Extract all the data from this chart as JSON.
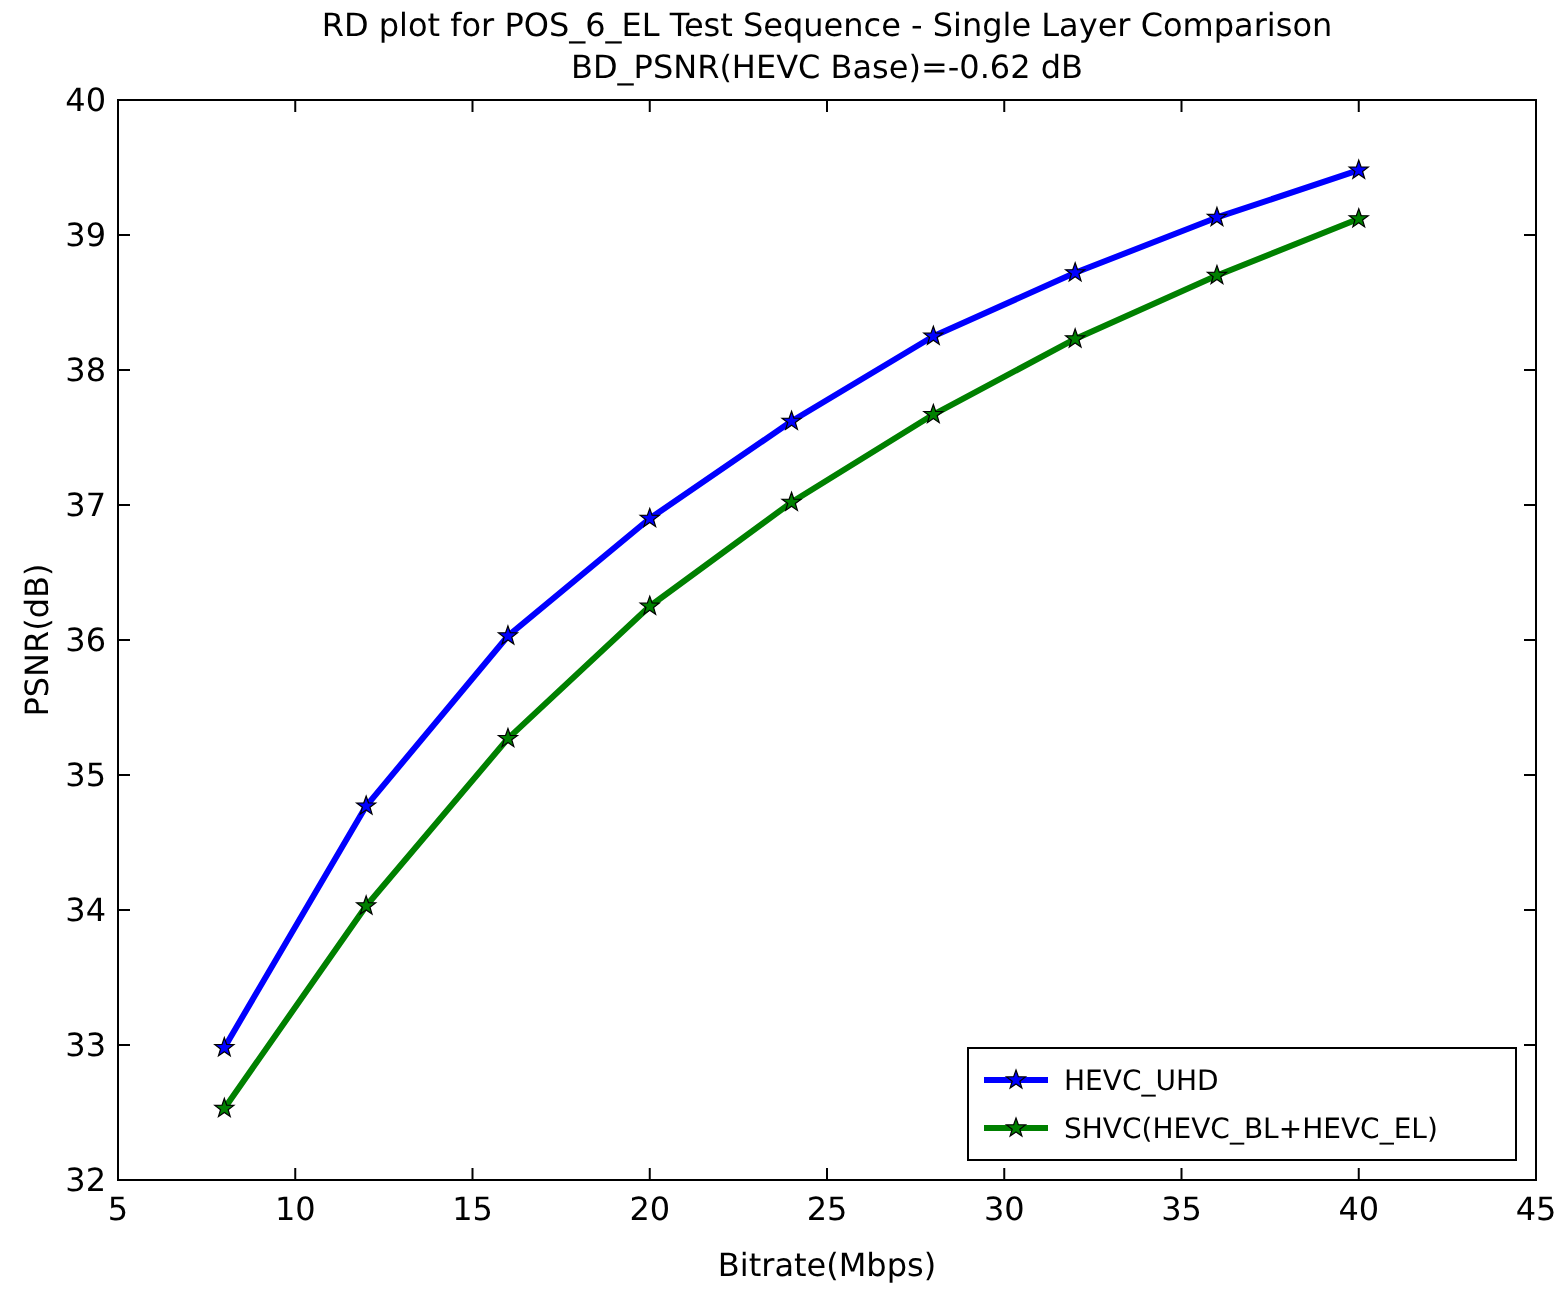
{
  "chart_data": {
    "type": "line",
    "title": "RD plot for POS_6_EL Test Sequence - Single Layer Comparison",
    "subtitle": "BD_PSNR(HEVC Base)=-0.62 dB",
    "xlabel": "Bitrate(Mbps)",
    "ylabel": "PSNR(dB)",
    "x": [
      8,
      12,
      16,
      20,
      24,
      28,
      32,
      36,
      40
    ],
    "series": [
      {
        "name": "HEVC_UHD",
        "color": "#0000ff",
        "values": [
          32.98,
          34.77,
          36.03,
          36.9,
          37.62,
          38.25,
          38.72,
          39.13,
          39.48
        ]
      },
      {
        "name": "SHVC(HEVC_BL+HEVC_EL)",
        "color": "#008000",
        "values": [
          32.53,
          34.03,
          35.27,
          36.25,
          37.02,
          37.67,
          38.23,
          38.7,
          39.12
        ]
      }
    ],
    "xlim": [
      5,
      45
    ],
    "xticks": [
      5,
      10,
      15,
      20,
      25,
      30,
      35,
      40,
      45
    ],
    "ylim": [
      32,
      40
    ],
    "yticks": [
      32,
      33,
      34,
      35,
      36,
      37,
      38,
      39,
      40
    ],
    "grid": false,
    "legend": "bottom right",
    "marker": "star",
    "line_style": "solid"
  }
}
